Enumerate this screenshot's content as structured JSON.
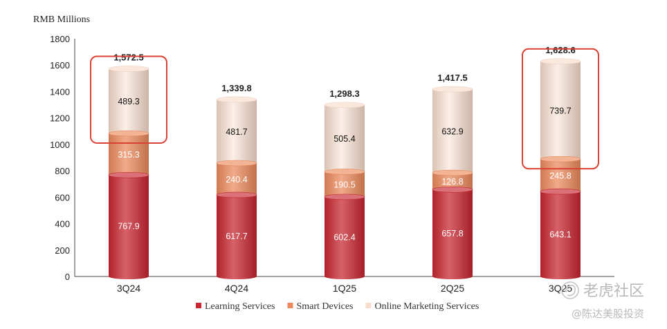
{
  "chart_data": {
    "type": "bar",
    "stacked": true,
    "unit_label": "RMB Millions",
    "categories": [
      "3Q24",
      "4Q24",
      "1Q25",
      "2Q25",
      "3Q25"
    ],
    "series": [
      {
        "name": "Learning Services",
        "values": [
          767.9,
          617.7,
          602.4,
          657.8,
          643.1
        ],
        "labels": [
          "767.9",
          "617.7",
          "602.4",
          "657.8",
          "643.1"
        ],
        "color": "#c8252f"
      },
      {
        "name": "Smart Devices",
        "values": [
          315.3,
          240.4,
          190.5,
          126.8,
          245.8
        ],
        "labels": [
          "315.3",
          "240.4",
          "190.5",
          "126.8",
          "245.8"
        ],
        "color": "#ec8a5c"
      },
      {
        "name": "Online Marketing Services",
        "values": [
          489.3,
          481.7,
          505.4,
          632.9,
          739.7
        ],
        "labels": [
          "489.3",
          "481.7",
          "505.4",
          "632.9",
          "739.7"
        ],
        "color": "#f9dccb"
      }
    ],
    "totals": [
      "1,572.5",
      "1,339.8",
      "1,298.3",
      "1,417.5",
      "1,628.6"
    ],
    "ylim": [
      0,
      1800
    ],
    "yticks": [
      "0",
      "200",
      "400",
      "600",
      "800",
      "1000",
      "1200",
      "1400",
      "1600",
      "1800"
    ],
    "highlighted_segments": [
      {
        "category": "3Q24",
        "series": "Online Marketing Services"
      },
      {
        "category": "3Q25",
        "series": "Online Marketing Services"
      }
    ],
    "legend_position": "bottom",
    "grid": false
  },
  "watermark": {
    "brand": "老虎社区",
    "handle": "@陈达美股投资",
    "color": "#b9b9b9"
  }
}
